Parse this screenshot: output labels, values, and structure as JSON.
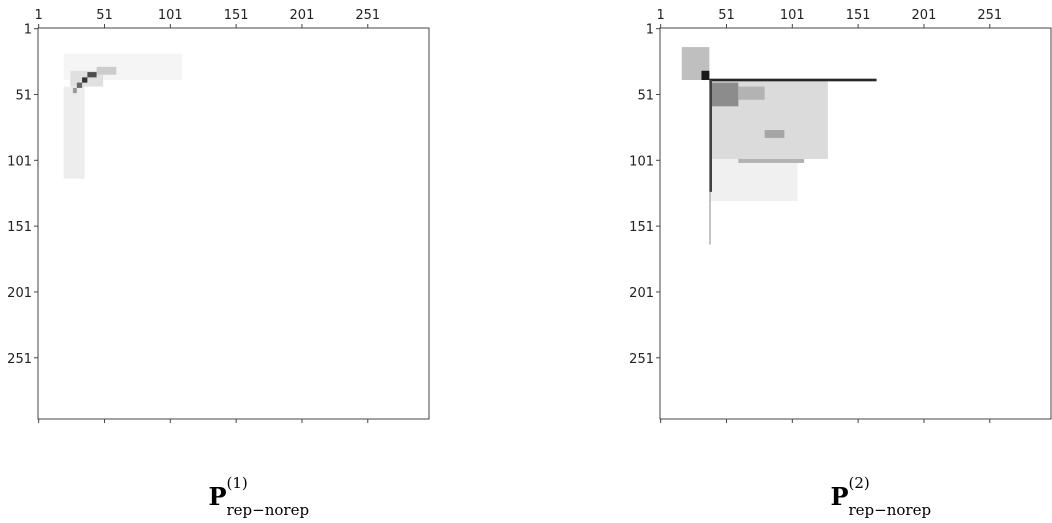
{
  "chart_data": [
    {
      "type": "heatmap",
      "cmap": "gray_r",
      "caption": {
        "symbol": "P",
        "superscript": "(1)",
        "subscript": "rep−norep"
      },
      "xlim": [
        0.5,
        297.5
      ],
      "ylim": [
        0.5,
        297.5
      ],
      "xticks": [
        1,
        51,
        101,
        151,
        201,
        251
      ],
      "yticks": [
        1,
        51,
        101,
        151,
        201,
        251
      ],
      "cells": [
        {
          "x": [
            20,
            110
          ],
          "y": [
            20,
            40
          ],
          "value": 0.04
        },
        {
          "x": [
            25,
            50
          ],
          "y": [
            33,
            45
          ],
          "value": 0.12
        },
        {
          "x": [
            20,
            36
          ],
          "y": [
            45,
            115
          ],
          "value": 0.07
        },
        {
          "x": [
            38,
            45
          ],
          "y": [
            34,
            38
          ],
          "value": 0.7
        },
        {
          "x": [
            34,
            38
          ],
          "y": [
            38,
            42
          ],
          "value": 0.8
        },
        {
          "x": [
            30,
            34
          ],
          "y": [
            42,
            46
          ],
          "value": 0.6
        },
        {
          "x": [
            27,
            30
          ],
          "y": [
            46,
            50
          ],
          "value": 0.4
        },
        {
          "x": [
            45,
            60
          ],
          "y": [
            30,
            36
          ],
          "value": 0.2
        }
      ]
    },
    {
      "type": "heatmap",
      "cmap": "gray_r",
      "caption": {
        "symbol": "P",
        "superscript": "(2)",
        "subscript": "rep−norep"
      },
      "xlim": [
        0.5,
        297.5
      ],
      "ylim": [
        0.5,
        297.5
      ],
      "xticks": [
        1,
        51,
        101,
        151,
        201,
        251
      ],
      "yticks": [
        1,
        51,
        101,
        151,
        201,
        251
      ],
      "cells": [
        {
          "x": [
            17,
            38
          ],
          "y": [
            15,
            40
          ],
          "value": 0.25
        },
        {
          "x": [
            32,
            38
          ],
          "y": [
            33,
            40
          ],
          "value": 0.9
        },
        {
          "x": [
            38,
            128
          ],
          "y": [
            40,
            100
          ],
          "value": 0.14
        },
        {
          "x": [
            38,
            105
          ],
          "y": [
            100,
            132
          ],
          "value": 0.06
        },
        {
          "x": [
            38,
            165
          ],
          "y": [
            39,
            41
          ],
          "value": 0.85
        },
        {
          "x": [
            38,
            40
          ],
          "y": [
            40,
            125
          ],
          "value": 0.75
        },
        {
          "x": [
            38,
            39
          ],
          "y": [
            125,
            165
          ],
          "value": 0.35
        },
        {
          "x": [
            40,
            60
          ],
          "y": [
            42,
            60
          ],
          "value": 0.45
        },
        {
          "x": [
            60,
            80
          ],
          "y": [
            45,
            55
          ],
          "value": 0.3
        },
        {
          "x": [
            80,
            95
          ],
          "y": [
            78,
            84
          ],
          "value": 0.35
        },
        {
          "x": [
            60,
            110
          ],
          "y": [
            100,
            103
          ],
          "value": 0.3
        }
      ]
    }
  ]
}
